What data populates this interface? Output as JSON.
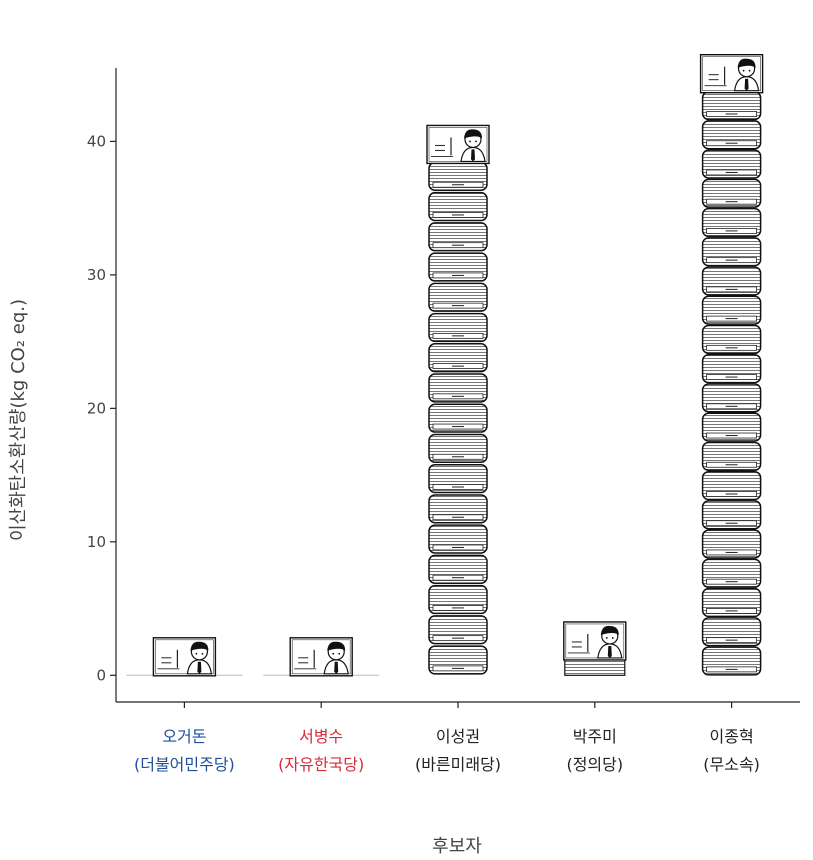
{
  "chart_data": {
    "type": "bar",
    "title": "",
    "xlabel": "후보자",
    "ylabel": "이산화탄소환산량(kg CO₂ eq.)",
    "ylim": [
      -2,
      45.5
    ],
    "yticks": [
      0,
      10,
      20,
      30,
      40
    ],
    "grid": false,
    "categories": [
      {
        "name": "오거돈",
        "party": "(더불어민주당)",
        "color": "#1f4e9a"
      },
      {
        "name": "서병수",
        "party": "(자유한국당)",
        "color": "#d62d3c"
      },
      {
        "name": "이성권",
        "party": "(바른미래당)",
        "color": "#222222"
      },
      {
        "name": "박주미",
        "party": "(정의당)",
        "color": "#222222"
      },
      {
        "name": "이종혁",
        "party": "(무소속)",
        "color": "#222222"
      }
    ],
    "values": [
      0.1,
      0.1,
      38.5,
      1.3,
      43.8
    ]
  }
}
